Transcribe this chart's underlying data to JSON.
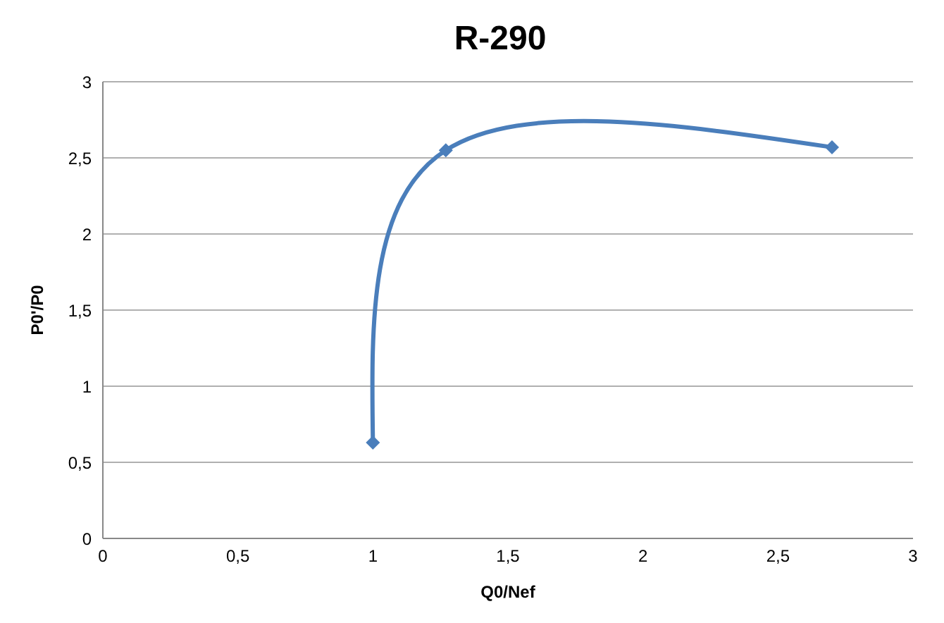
{
  "chart_data": {
    "type": "line",
    "title": "R-290",
    "xlabel": "Q0/Nef",
    "ylabel": "P0'/P0",
    "x": [
      1,
      1.27,
      2.7
    ],
    "series": [
      {
        "color": "#4a7ebb",
        "values": [
          0.63,
          2.55,
          2.57
        ]
      }
    ],
    "xlim": [
      0,
      3
    ],
    "xticks": [
      0,
      {
        "value": 0.5,
        "label": "0,5"
      },
      1,
      {
        "value": 1.5,
        "label": "1,5"
      },
      2,
      {
        "value": 2.5,
        "label": "2,5"
      },
      3
    ],
    "ylim": [
      0,
      3
    ],
    "yticks": [
      0,
      {
        "value": 0.5,
        "label": "0,5"
      },
      1,
      {
        "value": 1.5,
        "label": "1,5"
      },
      2,
      {
        "value": 2.5,
        "label": "2,5"
      },
      3
    ],
    "grid": "y",
    "legend": false,
    "marker": "diamond",
    "line_style": "solid"
  }
}
